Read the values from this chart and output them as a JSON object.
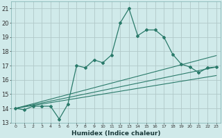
{
  "xlabel": "Humidex (Indice chaleur)",
  "bg_color": "#d0eaea",
  "grid_color": "#b0c8c8",
  "line_color": "#2a7a6a",
  "ylim": [
    13,
    21.5
  ],
  "xlim": [
    -0.5,
    23.5
  ],
  "yticks": [
    13,
    14,
    15,
    16,
    17,
    18,
    19,
    20,
    21
  ],
  "xtick_labels": [
    "0",
    "1",
    "2",
    "3",
    "4",
    "5",
    "6",
    "7",
    "8",
    "9",
    "10",
    "11",
    "12",
    "13",
    "14",
    "15",
    "16",
    "17",
    "18",
    "19",
    "20",
    "21",
    "22",
    "23"
  ],
  "series1_x": [
    0,
    1,
    2,
    3,
    4,
    5,
    6,
    7,
    8,
    9,
    10,
    11,
    12,
    13,
    14,
    15,
    16,
    17,
    18,
    19,
    20,
    21,
    22,
    23
  ],
  "series1_y": [
    14.0,
    13.9,
    14.15,
    14.15,
    14.15,
    13.25,
    14.3,
    17.0,
    16.85,
    17.4,
    17.2,
    17.75,
    20.0,
    21.0,
    19.1,
    19.5,
    19.5,
    19.0,
    17.8,
    17.1,
    16.9,
    16.5,
    16.85,
    16.9
  ],
  "line2_x": [
    0,
    23
  ],
  "line2_y": [
    14.0,
    17.7
  ],
  "line3_x": [
    0,
    23
  ],
  "line3_y": [
    14.0,
    16.9
  ],
  "line4_x": [
    0,
    23
  ],
  "line4_y": [
    14.0,
    16.3
  ]
}
